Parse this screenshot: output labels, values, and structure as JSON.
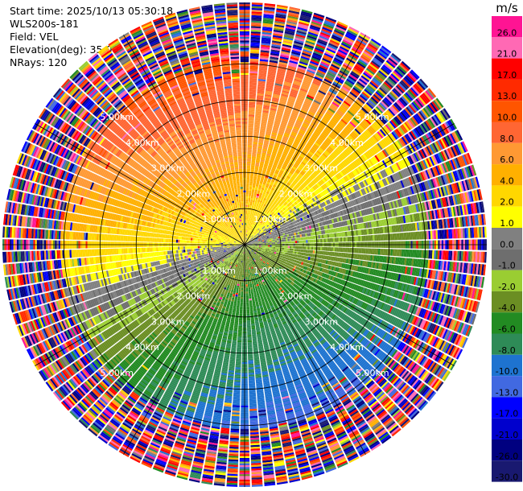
{
  "header": {
    "start_time": "Start time: 2025/10/13 05:30:18",
    "instrument": "WLS200s-181",
    "field": "Field: VEL",
    "elevation": "Elevation(deg): 35.00",
    "nrays": "NRays: 120"
  },
  "chart_data": {
    "type": "ppi",
    "field": "VEL",
    "units": "m/s",
    "nrays": 120,
    "range_rings_km": [
      1,
      2,
      3,
      4,
      5
    ],
    "range_ring_labels": [
      "1.00km",
      "2.00km",
      "3.00km",
      "4.00km",
      "5.00km"
    ],
    "max_range_km": 6.7,
    "colorbar": {
      "unit_label": "m/s",
      "ticks": [
        "26.0",
        "21.0",
        "17.0",
        "13.0",
        "10.0",
        "8.0",
        "6.0",
        "4.0",
        "2.0",
        "1.0",
        "0.0",
        "-1.0",
        "-2.0",
        "-4.0",
        "-6.0",
        "-8.0",
        "-10.0",
        "-13.0",
        "-17.0",
        "-21.0",
        "-26.0",
        "-30.0"
      ],
      "colors": [
        "#ff1493",
        "#ff69b4",
        "#ff0000",
        "#ff2a00",
        "#ff5500",
        "#ff6633",
        "#ff9933",
        "#ffb000",
        "#ffd700",
        "#ffff00",
        "#808080",
        "#6e6e6e",
        "#9acd32",
        "#6b8e23",
        "#228b22",
        "#2e8b57",
        "#1e73d0",
        "#4169e1",
        "#0000ff",
        "#0000cd",
        "#000080",
        "#191970"
      ]
    },
    "flow": {
      "description_free": true,
      "toward_direction_deg": 160,
      "speed_inner": 2.5,
      "speed_outer": 11
    }
  }
}
